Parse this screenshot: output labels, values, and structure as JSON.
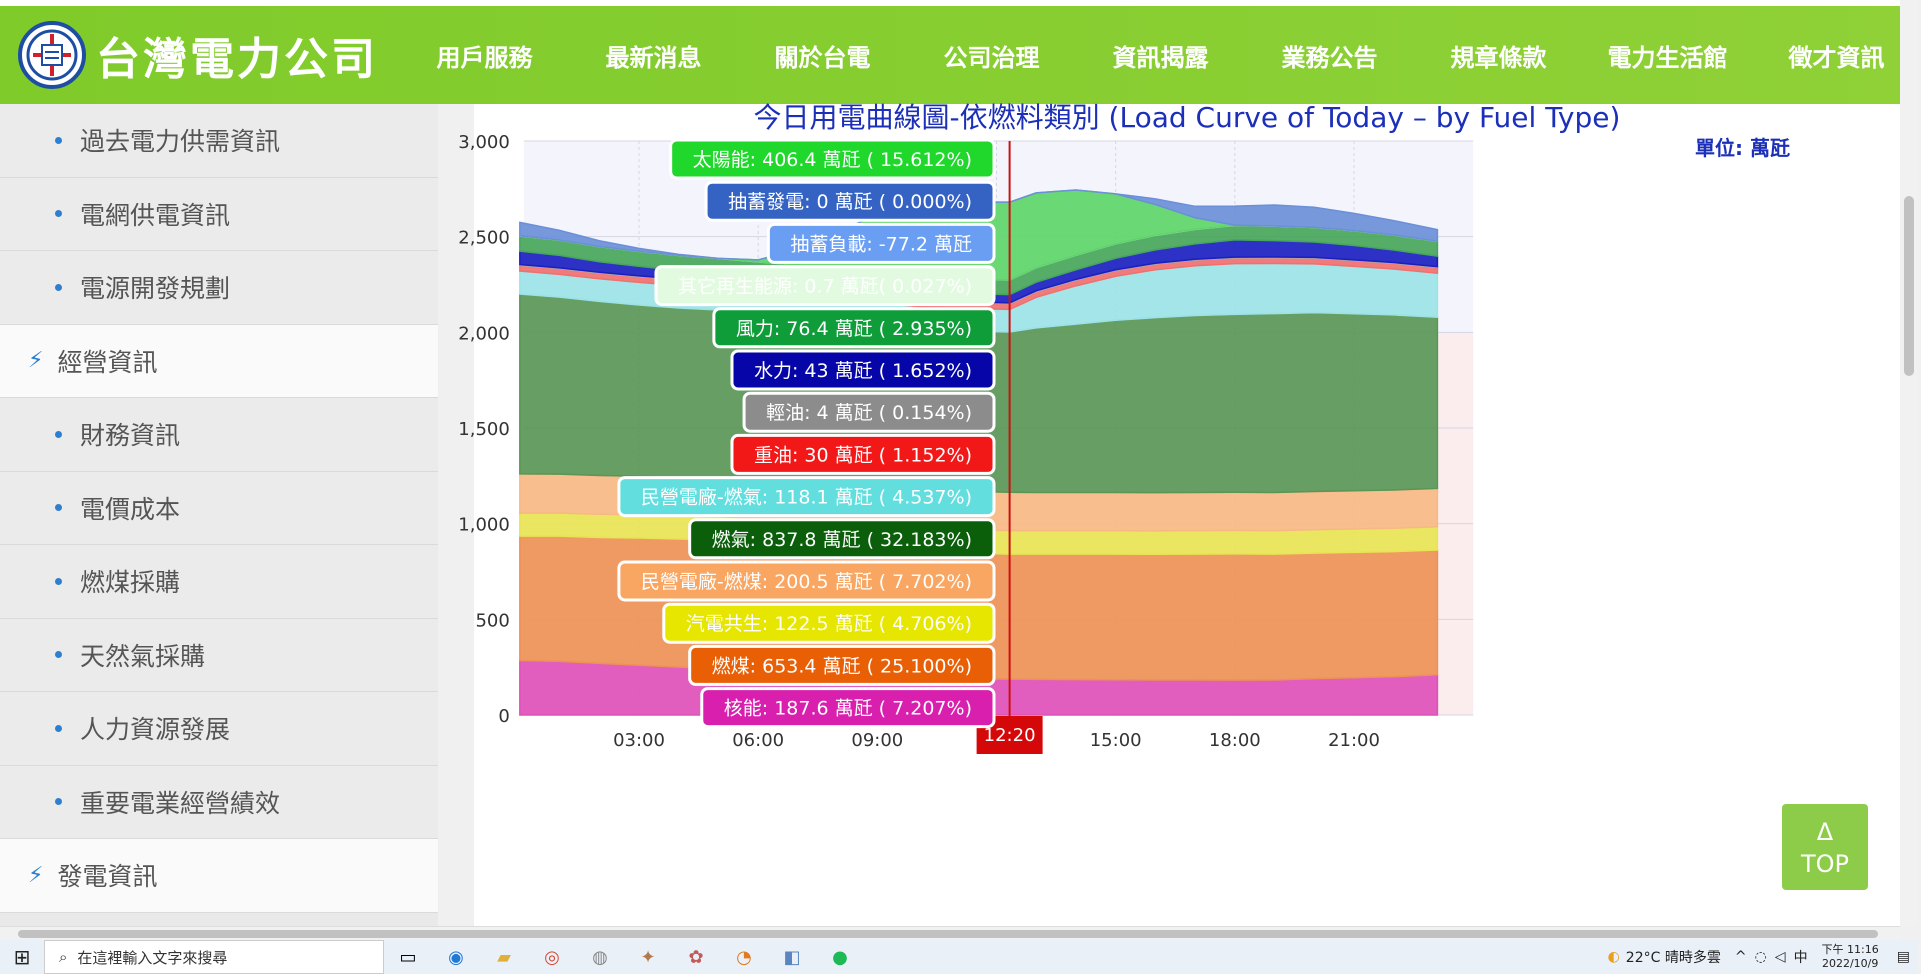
{
  "header": {
    "logo_text": "台灣電力公司",
    "nav": [
      "用戶服務",
      "最新消息",
      "關於台電",
      "公司治理",
      "資訊揭露",
      "業務公告",
      "規章條款",
      "電力生活館",
      "徵才資訊"
    ]
  },
  "sidebar": {
    "items": [
      {
        "type": "sub",
        "label": "過去電力供需資訊"
      },
      {
        "type": "sub",
        "label": "電網供電資訊"
      },
      {
        "type": "sub",
        "label": "電源開發規劃"
      },
      {
        "type": "head",
        "label": "經營資訊"
      },
      {
        "type": "sub",
        "label": "財務資訊"
      },
      {
        "type": "sub",
        "label": "電價成本"
      },
      {
        "type": "sub",
        "label": "燃煤採購"
      },
      {
        "type": "sub",
        "label": "天然氣採購"
      },
      {
        "type": "sub",
        "label": "人力資源發展"
      },
      {
        "type": "sub",
        "label": "重要電業經營績效"
      },
      {
        "type": "head",
        "label": "發電資訊"
      }
    ]
  },
  "chart_title": "今日用電曲線圖-依燃料類別 (Load Curve of Today – by Fuel Type)",
  "chart_unit": "單位: 萬瓩",
  "chart_data": {
    "type": "area",
    "ylim": [
      0,
      3000
    ],
    "y_ticks": [
      "0",
      "500",
      "1,000",
      "1,500",
      "2,000",
      "2,500",
      "3,000"
    ],
    "x_ticks": [
      "03:00",
      "06:00",
      "09:00",
      "15:00",
      "18:00",
      "21:00"
    ],
    "current_time": "12:20",
    "x_hours": [
      0,
      1,
      2,
      3,
      4,
      5,
      6,
      7,
      8,
      9,
      10,
      11,
      12.33,
      13,
      14,
      15,
      16,
      17,
      18,
      19,
      20,
      21,
      22,
      23.1
    ],
    "series": [
      {
        "name": "核能",
        "color": "#e050b8",
        "values": [
          285,
          280,
          270,
          260,
          250,
          240,
          232,
          225,
          215,
          205,
          195,
          190,
          187.6,
          186,
          185,
          184,
          183,
          183,
          182,
          183,
          190,
          195,
          200,
          210
        ]
      },
      {
        "name": "燃煤",
        "color": "#ee9156",
        "values": [
          650,
          655,
          658,
          665,
          670,
          675,
          672,
          670,
          668,
          664,
          660,
          658,
          653.4,
          655,
          656,
          657,
          657,
          658,
          660,
          658,
          656,
          655,
          654,
          652
        ]
      },
      {
        "name": "汽電共生",
        "color": "#e8e454",
        "values": [
          120,
          120,
          121,
          121,
          121,
          122,
          122,
          122,
          122,
          122,
          122,
          122,
          122.5,
          122,
          122,
          122,
          122,
          122,
          122,
          122,
          122,
          122,
          122,
          122
        ]
      },
      {
        "name": "民營電廠-燃煤",
        "color": "#f7b983",
        "values": [
          205,
          204,
          203,
          202,
          201,
          200,
          200,
          200,
          200,
          200,
          200,
          200,
          200.5,
          200,
          200,
          200,
          200,
          200,
          200,
          200,
          200,
          200,
          200,
          200
        ]
      },
      {
        "name": "燃氣",
        "color": "#5a9656",
        "values": [
          940,
          925,
          910,
          895,
          885,
          880,
          875,
          870,
          855,
          845,
          840,
          838,
          837.8,
          860,
          880,
          900,
          915,
          925,
          930,
          935,
          935,
          925,
          915,
          895
        ]
      },
      {
        "name": "民營電廠-燃氣",
        "color": "#9be3e6",
        "values": [
          120,
          119,
          118,
          118,
          118,
          118,
          118,
          118,
          118,
          118,
          118,
          118,
          118.1,
          160,
          200,
          230,
          250,
          260,
          265,
          262,
          255,
          248,
          240,
          230
        ]
      },
      {
        "name": "重油",
        "color": "#f07070",
        "values": [
          30,
          30,
          30,
          30,
          30,
          30,
          30,
          30,
          30,
          30,
          30,
          30,
          30,
          30,
          30,
          30,
          30,
          30,
          30,
          30,
          30,
          30,
          30,
          30
        ]
      },
      {
        "name": "輕油",
        "color": "#aaaaaa",
        "values": [
          4,
          4,
          4,
          4,
          4,
          4,
          4,
          4,
          4,
          4,
          4,
          4,
          4,
          4,
          4,
          4,
          4,
          4,
          4,
          4,
          4,
          4,
          4,
          4
        ]
      },
      {
        "name": "水力",
        "color": "#1b1fc0",
        "values": [
          70,
          65,
          55,
          50,
          45,
          40,
          38,
          36,
          35,
          40,
          42,
          43,
          43,
          45,
          50,
          60,
          70,
          80,
          90,
          85,
          80,
          75,
          65,
          55
        ]
      },
      {
        "name": "風力",
        "color": "#47a65b",
        "values": [
          80,
          80,
          79,
          78,
          78,
          77,
          77,
          77,
          77,
          76,
          76,
          76,
          76.4,
          76,
          76,
          76,
          76,
          76,
          76,
          76,
          76,
          77,
          78,
          78
        ]
      },
      {
        "name": "其它再生能源",
        "color": "#c8f0c8",
        "values": [
          0.7,
          0.7,
          0.7,
          0.7,
          0.7,
          0.7,
          0.7,
          0.7,
          0.7,
          0.7,
          0.7,
          0.7,
          0.7,
          0.7,
          0.7,
          0.7,
          0.7,
          0.7,
          0.7,
          0.7,
          0.7,
          0.7,
          0.7,
          0.7
        ]
      },
      {
        "name": "太陽能",
        "color": "#5ed56a",
        "values": [
          0,
          0,
          0,
          0,
          0,
          0,
          10,
          80,
          200,
          310,
          380,
          400,
          406.4,
          390,
          340,
          260,
          160,
          60,
          0,
          0,
          0,
          0,
          0,
          0
        ]
      },
      {
        "name": "抽蓄發電",
        "color": "#6b8fd8",
        "values": [
          70,
          50,
          30,
          15,
          5,
          0,
          0,
          0,
          0,
          0,
          0,
          0,
          0,
          0,
          0,
          0,
          30,
          60,
          100,
          110,
          105,
          90,
          75,
          60
        ]
      }
    ],
    "tooltip": [
      {
        "label": "太陽能: 406.4 萬瓩 ( 15.612%)",
        "bg": "#1fd82b",
        "fg": "#ffffff"
      },
      {
        "label": "抽蓄發電: 0 萬瓩 ( 0.000%)",
        "bg": "#3563c4",
        "fg": "#ffffff"
      },
      {
        "label": "抽蓄負載: -77.2 萬瓩",
        "bg": "#6a9ef2",
        "fg": "#ffffff"
      },
      {
        "label": "其它再生能源: 0.7 萬瓩( 0.027%)",
        "bg": "#e2fbe0",
        "fg": "#ffffff"
      },
      {
        "label": "風力: 76.4 萬瓩 ( 2.935%)",
        "bg": "#0f9d3a",
        "fg": "#ffffff"
      },
      {
        "label": "水力: 43 萬瓩 ( 1.652%)",
        "bg": "#0606a8",
        "fg": "#ffffff"
      },
      {
        "label": "輕油: 4 萬瓩 ( 0.154%)",
        "bg": "#8c8c8c",
        "fg": "#ffffff"
      },
      {
        "label": "重油: 30 萬瓩 ( 1.152%)",
        "bg": "#f21818",
        "fg": "#ffffff"
      },
      {
        "label": "民營電廠-燃氣: 118.1 萬瓩 ( 4.537%)",
        "bg": "#63dedf",
        "fg": "#ffffff"
      },
      {
        "label": "燃氣: 837.8 萬瓩 ( 32.183%)",
        "bg": "#0b5f0b",
        "fg": "#ffffff"
      },
      {
        "label": "民營電廠-燃煤: 200.5 萬瓩 ( 7.702%)",
        "bg": "#f8a662",
        "fg": "#ffffff"
      },
      {
        "label": "汽電共生: 122.5 萬瓩 ( 4.706%)",
        "bg": "#e6e600",
        "fg": "#ffffff"
      },
      {
        "label": "燃煤: 653.4 萬瓩 ( 25.100%)",
        "bg": "#e95f06",
        "fg": "#ffffff"
      },
      {
        "label": "核能: 187.6 萬瓩 ( 7.207%)",
        "bg": "#d81fae",
        "fg": "#ffffff"
      }
    ]
  },
  "top_button": {
    "arrow": "Δ",
    "label": "TOP"
  },
  "taskbar": {
    "search_placeholder": "在這裡輸入文字來搜尋",
    "weather": "22°C  晴時多雲",
    "ime": "中",
    "time": "下午 11:16",
    "date": "2022/10/9"
  }
}
